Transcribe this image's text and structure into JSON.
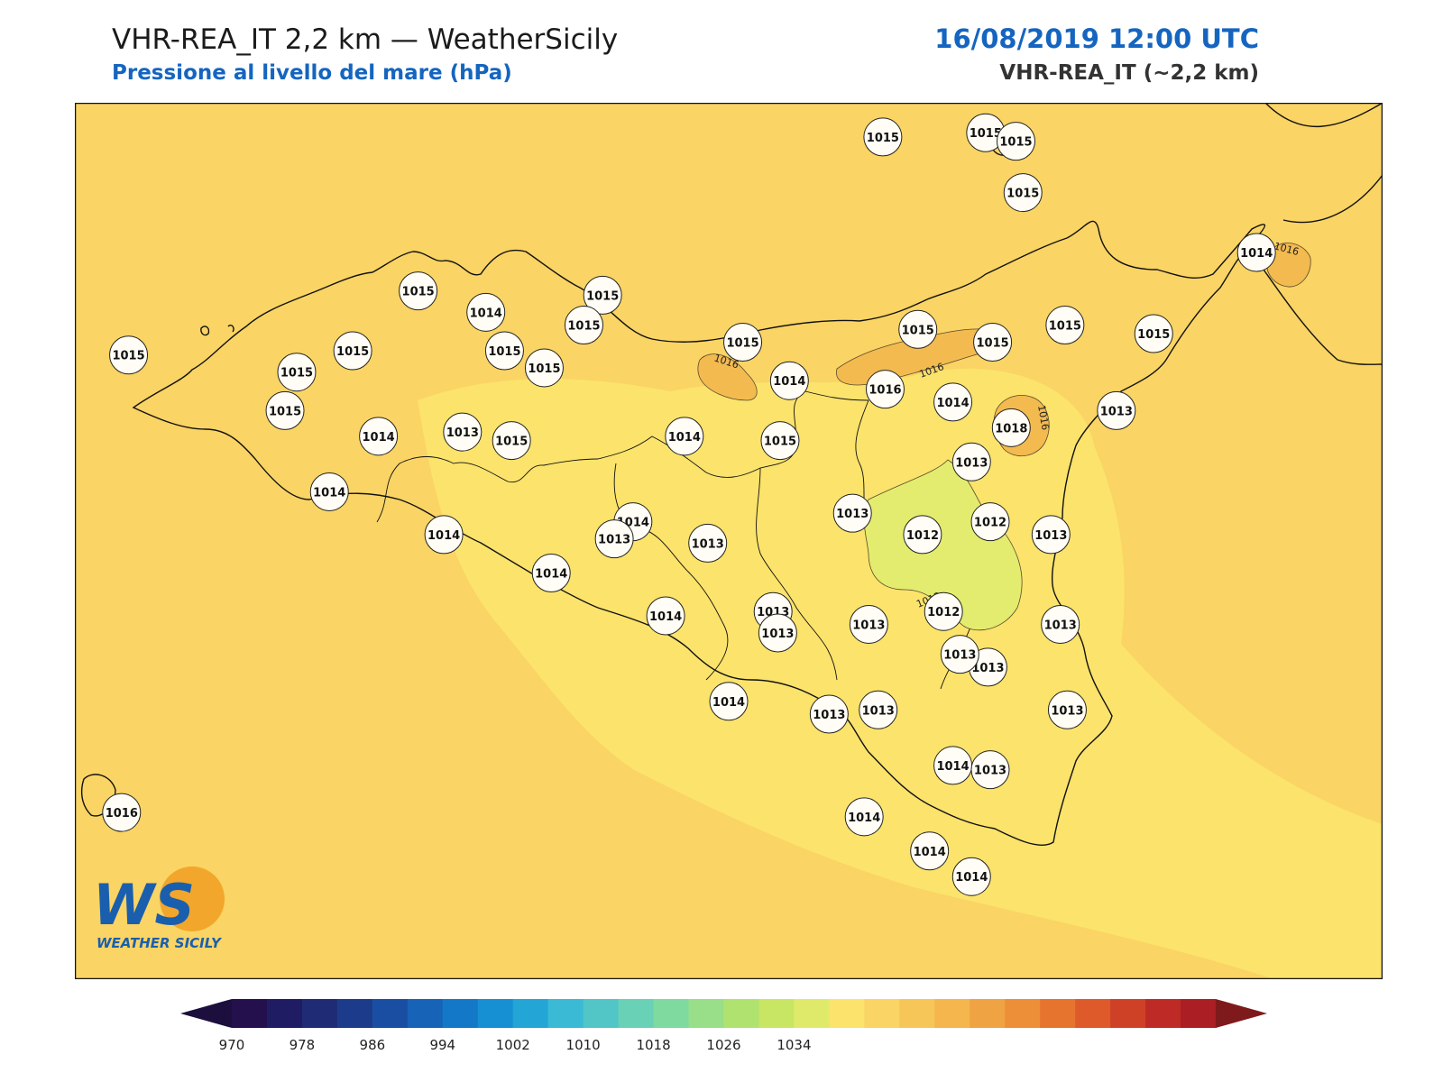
{
  "header": {
    "title": "VHR-REA_IT 2,2 km — WeatherSicily",
    "subtitle": "Pressione al livello del mare (hPa)",
    "datetime": "16/08/2019 12:00 UTC",
    "model": "VHR-REA_IT (~2,2 km)"
  },
  "logo": {
    "mark": "WS",
    "name": "WEATHER SICILY"
  },
  "colors": {
    "sea_fill": "#fad464",
    "land_fill": "#fbe36c",
    "high_fill": "#f3ba50",
    "low_fill": "#e3ec6e",
    "title_blue": "#1565c0"
  },
  "contour_labels": [
    "1016",
    "1016",
    "1016",
    "1016",
    "1012"
  ],
  "stations": [
    {
      "v": "1015",
      "lon": 14.46,
      "lat": 38.57
    },
    {
      "v": "1015",
      "lon": 14.9,
      "lat": 38.58
    },
    {
      "v": "1015",
      "lon": 15.03,
      "lat": 38.56
    },
    {
      "v": "1015",
      "lon": 15.06,
      "lat": 38.44
    },
    {
      "v": "1014",
      "lon": 16.06,
      "lat": 38.3
    },
    {
      "v": "1015",
      "lon": 13.26,
      "lat": 38.2
    },
    {
      "v": "1015",
      "lon": 12.47,
      "lat": 38.21
    },
    {
      "v": "1014",
      "lon": 12.76,
      "lat": 38.16
    },
    {
      "v": "1015",
      "lon": 13.18,
      "lat": 38.13
    },
    {
      "v": "1015",
      "lon": 14.61,
      "lat": 38.12
    },
    {
      "v": "1015",
      "lon": 15.24,
      "lat": 38.13
    },
    {
      "v": "1015",
      "lon": 15.62,
      "lat": 38.11
    },
    {
      "v": "1015",
      "lon": 11.23,
      "lat": 38.06
    },
    {
      "v": "1015",
      "lon": 12.19,
      "lat": 38.07
    },
    {
      "v": "1015",
      "lon": 12.84,
      "lat": 38.07
    },
    {
      "v": "1015",
      "lon": 13.86,
      "lat": 38.09
    },
    {
      "v": "1015",
      "lon": 14.93,
      "lat": 38.09
    },
    {
      "v": "1015",
      "lon": 11.95,
      "lat": 38.02
    },
    {
      "v": "1015",
      "lon": 13.01,
      "lat": 38.03
    },
    {
      "v": "1014",
      "lon": 14.06,
      "lat": 38.0
    },
    {
      "v": "1016",
      "lon": 14.47,
      "lat": 37.98
    },
    {
      "v": "1014",
      "lon": 14.76,
      "lat": 37.95
    },
    {
      "v": "1015",
      "lon": 11.9,
      "lat": 37.93
    },
    {
      "v": "1013",
      "lon": 15.46,
      "lat": 37.93
    },
    {
      "v": "1018",
      "lon": 15.01,
      "lat": 37.89
    },
    {
      "v": "1014",
      "lon": 12.3,
      "lat": 37.87
    },
    {
      "v": "1013",
      "lon": 12.66,
      "lat": 37.88
    },
    {
      "v": "1015",
      "lon": 12.87,
      "lat": 37.86
    },
    {
      "v": "1014",
      "lon": 13.61,
      "lat": 37.87
    },
    {
      "v": "1015",
      "lon": 14.02,
      "lat": 37.86
    },
    {
      "v": "1013",
      "lon": 14.84,
      "lat": 37.81
    },
    {
      "v": "1014",
      "lon": 12.09,
      "lat": 37.74
    },
    {
      "v": "1013",
      "lon": 14.33,
      "lat": 37.69
    },
    {
      "v": "1012",
      "lon": 14.92,
      "lat": 37.67
    },
    {
      "v": "1014",
      "lon": 13.39,
      "lat": 37.67
    },
    {
      "v": "1012",
      "lon": 14.63,
      "lat": 37.64
    },
    {
      "v": "1014",
      "lon": 12.58,
      "lat": 37.64
    },
    {
      "v": "1013",
      "lon": 13.31,
      "lat": 37.63
    },
    {
      "v": "1013",
      "lon": 13.71,
      "lat": 37.62
    },
    {
      "v": "1013",
      "lon": 15.18,
      "lat": 37.64
    },
    {
      "v": "1014",
      "lon": 13.04,
      "lat": 37.55
    },
    {
      "v": "1012",
      "lon": 14.72,
      "lat": 37.46
    },
    {
      "v": "1014",
      "lon": 13.53,
      "lat": 37.45
    },
    {
      "v": "1013",
      "lon": 13.99,
      "lat": 37.46
    },
    {
      "v": "1013",
      "lon": 14.4,
      "lat": 37.43
    },
    {
      "v": "1013",
      "lon": 15.22,
      "lat": 37.43
    },
    {
      "v": "1013",
      "lon": 14.01,
      "lat": 37.41
    },
    {
      "v": "1013",
      "lon": 14.91,
      "lat": 37.33
    },
    {
      "v": "1013",
      "lon": 14.79,
      "lat": 37.36
    },
    {
      "v": "1014",
      "lon": 13.8,
      "lat": 37.25
    },
    {
      "v": "1013",
      "lon": 14.23,
      "lat": 37.22
    },
    {
      "v": "1013",
      "lon": 14.44,
      "lat": 37.23
    },
    {
      "v": "1013",
      "lon": 15.25,
      "lat": 37.23
    },
    {
      "v": "1014",
      "lon": 14.76,
      "lat": 37.1
    },
    {
      "v": "1013",
      "lon": 14.92,
      "lat": 37.09
    },
    {
      "v": "1016",
      "lon": 11.2,
      "lat": 36.99
    },
    {
      "v": "1014",
      "lon": 14.38,
      "lat": 36.98
    },
    {
      "v": "1014",
      "lon": 14.66,
      "lat": 36.9
    },
    {
      "v": "1014",
      "lon": 14.84,
      "lat": 36.84
    }
  ],
  "colorbar": {
    "ticks": [
      "970",
      "978",
      "986",
      "994",
      "1002",
      "1010",
      "1018",
      "1026",
      "1034"
    ],
    "colors": [
      "#23104d",
      "#1f1c63",
      "#1f2b74",
      "#1c3b8b",
      "#1a4ea3",
      "#1663b8",
      "#1378c8",
      "#1690d2",
      "#23a6d6",
      "#3bbad5",
      "#52c5c6",
      "#69d2b6",
      "#7fdaa0",
      "#99de88",
      "#b0e270",
      "#c8e664",
      "#e0ea6a",
      "#fbe36c",
      "#fad464",
      "#f7c658",
      "#f4b64d",
      "#f0a342",
      "#ed8e38",
      "#e6742f",
      "#de5a2a",
      "#cf4127",
      "#be2b26",
      "#ab1e24"
    ],
    "min_color": "#1c0f3d",
    "max_color": "#7e1a1c"
  }
}
